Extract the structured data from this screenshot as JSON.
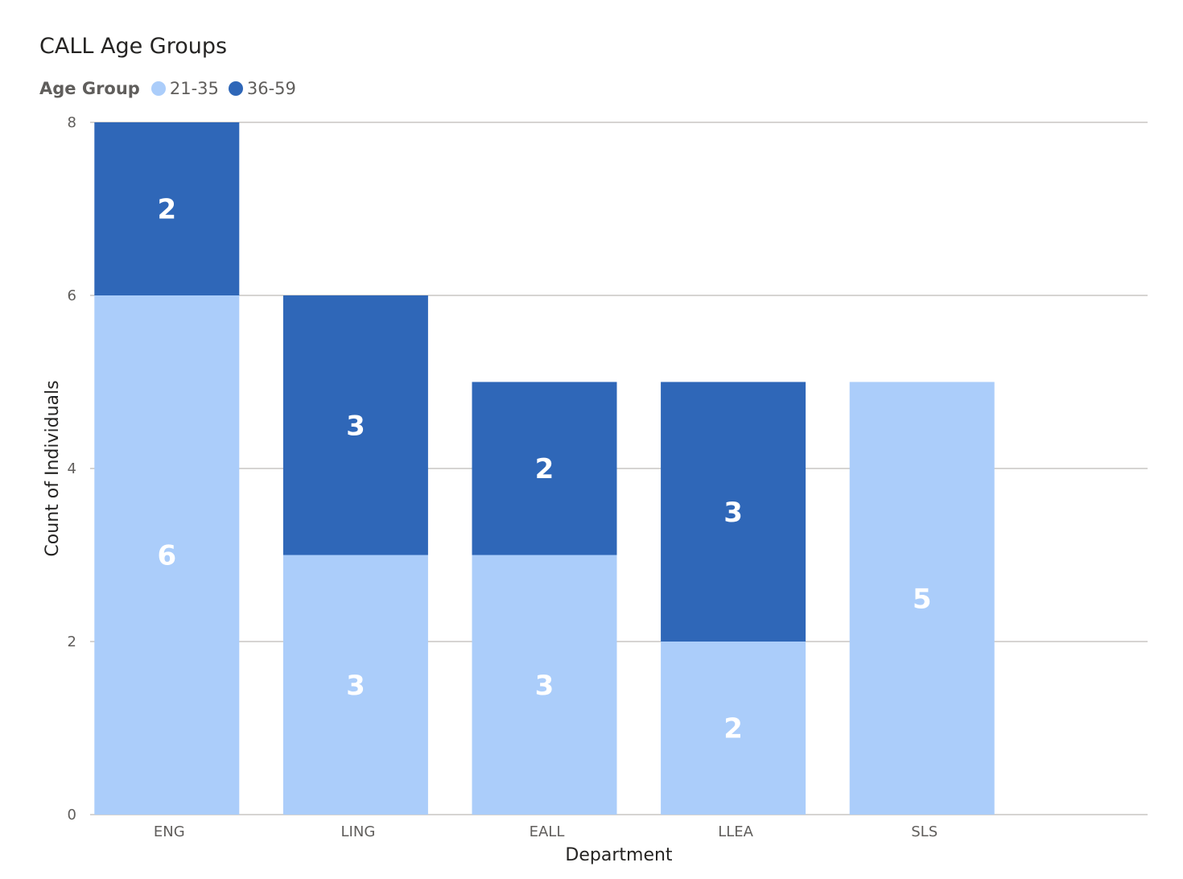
{
  "chart_data": {
    "type": "bar",
    "stacked": true,
    "title": "CALL Age Groups",
    "legend_title": "Age Group",
    "legend_position": "top-left",
    "xlabel": "Department",
    "ylabel": "Count of Individuals",
    "categories": [
      "ENG",
      "LING",
      "EALL",
      "LLEA",
      "SLS"
    ],
    "series": [
      {
        "name": "21-35",
        "color": "#ABCDFA",
        "values": [
          6,
          3,
          3,
          2,
          5
        ]
      },
      {
        "name": "36-59",
        "color": "#2F67B8",
        "values": [
          2,
          3,
          2,
          3,
          0
        ]
      }
    ],
    "ylim": [
      0,
      8
    ],
    "yticks": [
      "0",
      "2",
      "4",
      "6",
      "8"
    ],
    "grid": true,
    "gridline_color": "#C8C6C4"
  }
}
